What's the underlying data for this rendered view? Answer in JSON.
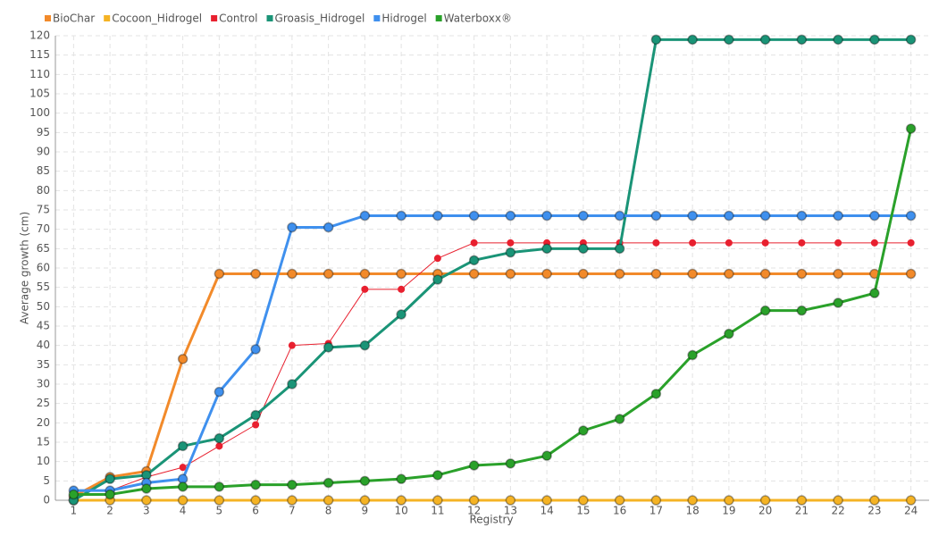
{
  "chart_data": {
    "type": "line",
    "x_label": "Registry",
    "y_label": "Average growth (cm)",
    "categories": [
      "1",
      "2",
      "3",
      "4",
      "5",
      "6",
      "7",
      "8",
      "9",
      "10",
      "11",
      "12",
      "13",
      "14",
      "15",
      "16",
      "17",
      "18",
      "19",
      "20",
      "21",
      "22",
      "23",
      "24"
    ],
    "ylim": [
      0,
      120
    ],
    "yticks": [
      0,
      5,
      10,
      15,
      20,
      25,
      30,
      35,
      40,
      45,
      50,
      55,
      60,
      65,
      70,
      75,
      80,
      85,
      90,
      95,
      100,
      105,
      110,
      115,
      120
    ],
    "grid": true,
    "legend": "top-left",
    "series": [
      {
        "name": "BioChar",
        "color": "#f28a2a",
        "values": [
          1,
          6,
          7.5,
          36.5,
          58.5,
          58.5,
          58.5,
          58.5,
          58.5,
          58.5,
          58.5,
          58.5,
          58.5,
          58.5,
          58.5,
          58.5,
          58.5,
          58.5,
          58.5,
          58.5,
          58.5,
          58.5,
          58.5,
          58.5
        ]
      },
      {
        "name": "Cocoon_Hidrogel",
        "color": "#f5b324",
        "values": [
          0,
          0,
          0,
          0,
          0,
          0,
          0,
          0,
          0,
          0,
          0,
          0,
          0,
          0,
          0,
          0,
          0,
          0,
          0,
          0,
          0,
          0,
          0,
          0
        ]
      },
      {
        "name": "Control",
        "color": "#e8202f",
        "values": [
          2.5,
          2.5,
          6,
          8.5,
          14,
          19.5,
          40,
          40.5,
          54.5,
          54.5,
          62.5,
          66.5,
          66.5,
          66.5,
          66.5,
          66.5,
          66.5,
          66.5,
          66.5,
          66.5,
          66.5,
          66.5,
          66.5,
          66.5
        ]
      },
      {
        "name": "Groasis_Hidrogel",
        "color": "#1a9477",
        "values": [
          0,
          5.5,
          6.5,
          14,
          16,
          22,
          30,
          39.5,
          40,
          48,
          57,
          62,
          64,
          65,
          65,
          65,
          119,
          119,
          119,
          119,
          119,
          119,
          119,
          119
        ]
      },
      {
        "name": "Hidrogel",
        "color": "#3f90ee",
        "values": [
          2.5,
          2.5,
          4.5,
          5.5,
          28,
          39,
          70.5,
          70.5,
          73.5,
          73.5,
          73.5,
          73.5,
          73.5,
          73.5,
          73.5,
          73.5,
          73.5,
          73.5,
          73.5,
          73.5,
          73.5,
          73.5,
          73.5,
          73.5
        ]
      },
      {
        "name": "Waterboxx®",
        "color": "#2aa12a",
        "values": [
          1.5,
          1.5,
          3,
          3.5,
          3.5,
          4,
          4,
          4.5,
          5,
          5.5,
          6.5,
          9,
          9.5,
          11.5,
          18,
          21,
          27.5,
          37.5,
          43,
          49,
          49,
          51,
          53.5,
          96
        ]
      }
    ]
  }
}
